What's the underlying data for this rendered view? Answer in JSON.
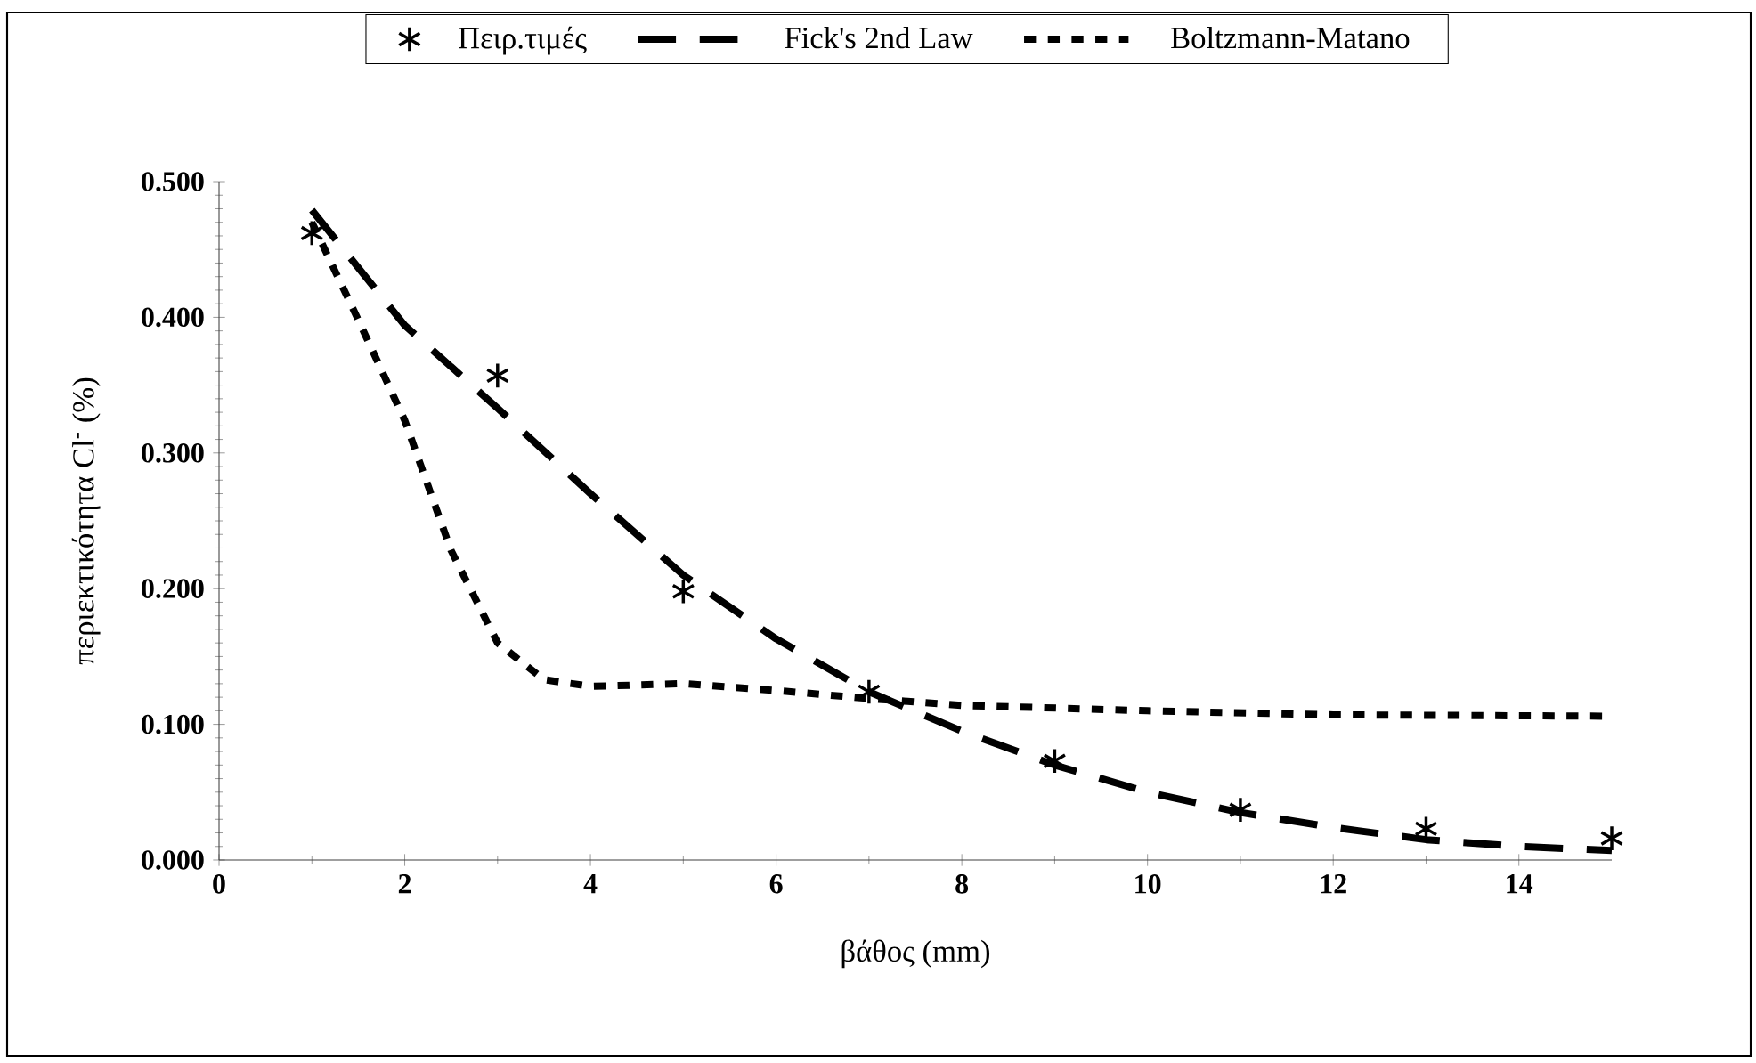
{
  "chart_data": {
    "type": "line",
    "xlabel": "βάθος (mm)",
    "ylabel": "περιεκτικότητα Cl$^{-}$ (%)",
    "xlim": [
      0,
      15
    ],
    "ylim": [
      0,
      0.5
    ],
    "xticks": [
      0,
      2,
      4,
      6,
      8,
      10,
      12,
      14
    ],
    "yticks": [
      {
        "value": 0,
        "label": "0.000"
      },
      {
        "value": 0.1,
        "label": "0.100"
      },
      {
        "value": 0.2,
        "label": "0.200"
      },
      {
        "value": 0.3,
        "label": "0.300"
      },
      {
        "value": 0.4,
        "label": "0.400"
      },
      {
        "value": 0.5,
        "label": "0.500"
      }
    ],
    "legend": "top",
    "grid": false,
    "series": [
      {
        "name": "Πειρ.τιμές",
        "type": "scatter",
        "marker": "cross",
        "color": "#000000",
        "x": [
          1,
          3,
          5,
          7,
          9,
          11,
          13,
          15
        ],
        "values": [
          0.462,
          0.357,
          0.198,
          0.124,
          0.073,
          0.037,
          0.023,
          0.016
        ]
      },
      {
        "name": "Fick's 2nd Law",
        "line_style": "dashed",
        "color": "#000000",
        "x": [
          1,
          2,
          3,
          4,
          5,
          6,
          7,
          8,
          9,
          10,
          11,
          12,
          13,
          14,
          15
        ],
        "values": [
          0.479,
          0.394,
          0.333,
          0.27,
          0.21,
          0.163,
          0.124,
          0.095,
          0.07,
          0.05,
          0.035,
          0.024,
          0.015,
          0.01,
          0.007
        ]
      },
      {
        "name": "Boltzmann-Matano",
        "line_style": "dotted",
        "color": "#000000",
        "x": [
          1,
          1.5,
          2,
          2.5,
          3,
          3.5,
          4,
          5,
          6,
          7,
          8,
          10,
          12,
          15
        ],
        "values": [
          0.47,
          0.398,
          0.324,
          0.228,
          0.16,
          0.133,
          0.128,
          0.13,
          0.125,
          0.119,
          0.114,
          0.11,
          0.107,
          0.106
        ]
      }
    ]
  }
}
